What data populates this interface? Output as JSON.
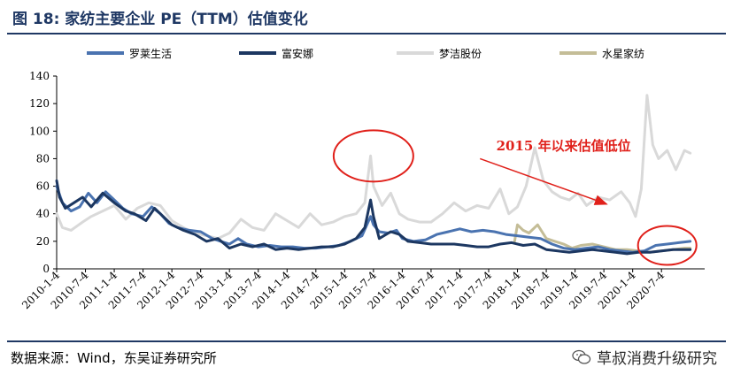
{
  "figure": {
    "title": "图 18:  家纺主要企业 PE（TTM）估值变化",
    "source": "数据来源：Wind，东吴证券研究所",
    "watermark": "草叔消费升级研究",
    "watermark_icon": "wechat-icon"
  },
  "colors": {
    "luolai": "#4a73b0",
    "fuanna": "#1c3761",
    "mengjie": "#d9d9d9",
    "shuixing": "#c4bd97",
    "annotation": "#e0201a",
    "rule": "#1f3864"
  },
  "chart_data": {
    "type": "line",
    "title": "家纺主要企业 PE（TTM）估值变化",
    "xlabel": "",
    "ylabel": "",
    "ylim": [
      0,
      140
    ],
    "yticks": [
      0,
      20,
      40,
      60,
      80,
      100,
      120,
      140
    ],
    "xlim": [
      2010.0,
      2021.25
    ],
    "xticks": [
      {
        "label": "2010-1-4",
        "t": 2010.0
      },
      {
        "label": "2010-7-4",
        "t": 2010.5
      },
      {
        "label": "2011-1-4",
        "t": 2011.0
      },
      {
        "label": "2011-7-4",
        "t": 2011.5
      },
      {
        "label": "2012-1-4",
        "t": 2012.0
      },
      {
        "label": "2012-7-4",
        "t": 2012.5
      },
      {
        "label": "2013-1-4",
        "t": 2013.0
      },
      {
        "label": "2013-7-4",
        "t": 2013.5
      },
      {
        "label": "2014-1-4",
        "t": 2014.0
      },
      {
        "label": "2014-7-4",
        "t": 2014.5
      },
      {
        "label": "2015-1-4",
        "t": 2015.0
      },
      {
        "label": "2015-7-4",
        "t": 2015.5
      },
      {
        "label": "2016-1-4",
        "t": 2016.0
      },
      {
        "label": "2016-7-4",
        "t": 2016.5
      },
      {
        "label": "2017-1-4",
        "t": 2017.0
      },
      {
        "label": "2017-7-4",
        "t": 2017.5
      },
      {
        "label": "2018-1-4",
        "t": 2018.0
      },
      {
        "label": "2018-7-4",
        "t": 2018.5
      },
      {
        "label": "2019-1-4",
        "t": 2019.0
      },
      {
        "label": "2019-7-4",
        "t": 2019.5
      },
      {
        "label": "2020-1-4",
        "t": 2020.0
      },
      {
        "label": "2020-7-4",
        "t": 2020.5
      }
    ],
    "series": [
      {
        "name": "罗莱生活",
        "color_key": "luolai",
        "points": [
          [
            2010.0,
            60
          ],
          [
            2010.1,
            48
          ],
          [
            2010.25,
            42
          ],
          [
            2010.4,
            45
          ],
          [
            2010.55,
            55
          ],
          [
            2010.7,
            48
          ],
          [
            2010.85,
            56
          ],
          [
            2011.0,
            50
          ],
          [
            2011.15,
            44
          ],
          [
            2011.3,
            40
          ],
          [
            2011.5,
            38
          ],
          [
            2011.65,
            45
          ],
          [
            2011.8,
            40
          ],
          [
            2011.95,
            33
          ],
          [
            2012.1,
            30
          ],
          [
            2012.3,
            28
          ],
          [
            2012.5,
            27
          ],
          [
            2012.7,
            22
          ],
          [
            2012.85,
            20
          ],
          [
            2013.0,
            18
          ],
          [
            2013.15,
            22
          ],
          [
            2013.3,
            18
          ],
          [
            2013.5,
            16
          ],
          [
            2013.7,
            17
          ],
          [
            2013.9,
            16
          ],
          [
            2014.1,
            16
          ],
          [
            2014.3,
            15
          ],
          [
            2014.5,
            15
          ],
          [
            2014.7,
            16
          ],
          [
            2014.9,
            17
          ],
          [
            2015.1,
            20
          ],
          [
            2015.3,
            24
          ],
          [
            2015.45,
            38
          ],
          [
            2015.5,
            32
          ],
          [
            2015.6,
            27
          ],
          [
            2015.75,
            26
          ],
          [
            2015.9,
            28
          ],
          [
            2016.0,
            22
          ],
          [
            2016.2,
            20
          ],
          [
            2016.4,
            21
          ],
          [
            2016.6,
            25
          ],
          [
            2016.8,
            27
          ],
          [
            2017.0,
            29
          ],
          [
            2017.2,
            27
          ],
          [
            2017.4,
            28
          ],
          [
            2017.6,
            27
          ],
          [
            2017.8,
            25
          ],
          [
            2018.0,
            24
          ],
          [
            2018.2,
            23
          ],
          [
            2018.4,
            22
          ],
          [
            2018.6,
            18
          ],
          [
            2018.8,
            15
          ],
          [
            2019.0,
            14
          ],
          [
            2019.2,
            15
          ],
          [
            2019.4,
            16
          ],
          [
            2019.6,
            14
          ],
          [
            2019.8,
            13
          ],
          [
            2020.0,
            12
          ],
          [
            2020.2,
            13
          ],
          [
            2020.4,
            17
          ],
          [
            2020.6,
            18
          ],
          [
            2020.8,
            19
          ],
          [
            2021.0,
            20
          ]
        ]
      },
      {
        "name": "富安娜",
        "color_key": "fuanna",
        "points": [
          [
            2010.0,
            64
          ],
          [
            2010.05,
            52
          ],
          [
            2010.15,
            44
          ],
          [
            2010.3,
            48
          ],
          [
            2010.45,
            52
          ],
          [
            2010.6,
            45
          ],
          [
            2010.8,
            55
          ],
          [
            2011.0,
            48
          ],
          [
            2011.2,
            42
          ],
          [
            2011.35,
            40
          ],
          [
            2011.55,
            35
          ],
          [
            2011.7,
            44
          ],
          [
            2011.85,
            38
          ],
          [
            2012.0,
            32
          ],
          [
            2012.2,
            28
          ],
          [
            2012.4,
            25
          ],
          [
            2012.6,
            20
          ],
          [
            2012.8,
            22
          ],
          [
            2013.0,
            15
          ],
          [
            2013.2,
            18
          ],
          [
            2013.4,
            16
          ],
          [
            2013.6,
            18
          ],
          [
            2013.8,
            14
          ],
          [
            2014.0,
            15
          ],
          [
            2014.2,
            14
          ],
          [
            2014.4,
            15
          ],
          [
            2014.6,
            16
          ],
          [
            2014.8,
            16
          ],
          [
            2015.0,
            18
          ],
          [
            2015.2,
            22
          ],
          [
            2015.35,
            30
          ],
          [
            2015.45,
            50
          ],
          [
            2015.5,
            38
          ],
          [
            2015.6,
            22
          ],
          [
            2015.8,
            27
          ],
          [
            2015.95,
            25
          ],
          [
            2016.1,
            20
          ],
          [
            2016.3,
            19
          ],
          [
            2016.5,
            18
          ],
          [
            2016.7,
            18
          ],
          [
            2016.9,
            18
          ],
          [
            2017.1,
            17
          ],
          [
            2017.3,
            16
          ],
          [
            2017.5,
            16
          ],
          [
            2017.7,
            18
          ],
          [
            2017.9,
            19
          ],
          [
            2018.1,
            17
          ],
          [
            2018.3,
            18
          ],
          [
            2018.5,
            14
          ],
          [
            2018.7,
            13
          ],
          [
            2018.9,
            12
          ],
          [
            2019.1,
            13
          ],
          [
            2019.3,
            14
          ],
          [
            2019.5,
            13
          ],
          [
            2019.7,
            12
          ],
          [
            2019.9,
            11
          ],
          [
            2020.1,
            12
          ],
          [
            2020.3,
            12
          ],
          [
            2020.5,
            13
          ],
          [
            2020.7,
            14
          ],
          [
            2020.9,
            14
          ],
          [
            2021.0,
            14
          ]
        ]
      },
      {
        "name": "梦洁股份",
        "color_key": "mengjie",
        "points": [
          [
            2010.0,
            40
          ],
          [
            2010.1,
            30
          ],
          [
            2010.25,
            28
          ],
          [
            2010.45,
            34
          ],
          [
            2010.6,
            38
          ],
          [
            2010.8,
            42
          ],
          [
            2011.0,
            46
          ],
          [
            2011.2,
            36
          ],
          [
            2011.4,
            44
          ],
          [
            2011.6,
            48
          ],
          [
            2011.8,
            46
          ],
          [
            2012.0,
            35
          ],
          [
            2012.2,
            30
          ],
          [
            2012.4,
            26
          ],
          [
            2012.6,
            24
          ],
          [
            2012.8,
            22
          ],
          [
            2013.0,
            26
          ],
          [
            2013.2,
            36
          ],
          [
            2013.4,
            30
          ],
          [
            2013.6,
            28
          ],
          [
            2013.8,
            40
          ],
          [
            2014.0,
            35
          ],
          [
            2014.2,
            30
          ],
          [
            2014.4,
            40
          ],
          [
            2014.6,
            32
          ],
          [
            2014.8,
            34
          ],
          [
            2015.0,
            38
          ],
          [
            2015.2,
            40
          ],
          [
            2015.35,
            48
          ],
          [
            2015.45,
            82
          ],
          [
            2015.5,
            60
          ],
          [
            2015.65,
            46
          ],
          [
            2015.8,
            55
          ],
          [
            2015.95,
            40
          ],
          [
            2016.1,
            36
          ],
          [
            2016.3,
            34
          ],
          [
            2016.5,
            34
          ],
          [
            2016.7,
            40
          ],
          [
            2016.9,
            48
          ],
          [
            2017.1,
            42
          ],
          [
            2017.3,
            46
          ],
          [
            2017.5,
            44
          ],
          [
            2017.7,
            58
          ],
          [
            2017.85,
            40
          ],
          [
            2018.0,
            45
          ],
          [
            2018.15,
            60
          ],
          [
            2018.3,
            88
          ],
          [
            2018.45,
            64
          ],
          [
            2018.6,
            56
          ],
          [
            2018.75,
            52
          ],
          [
            2018.9,
            50
          ],
          [
            2019.05,
            55
          ],
          [
            2019.2,
            46
          ],
          [
            2019.4,
            52
          ],
          [
            2019.6,
            50
          ],
          [
            2019.8,
            56
          ],
          [
            2019.95,
            48
          ],
          [
            2020.05,
            38
          ],
          [
            2020.15,
            58
          ],
          [
            2020.25,
            126
          ],
          [
            2020.35,
            90
          ],
          [
            2020.45,
            80
          ],
          [
            2020.6,
            86
          ],
          [
            2020.75,
            72
          ],
          [
            2020.9,
            86
          ],
          [
            2021.0,
            84
          ]
        ]
      },
      {
        "name": "水星家纺",
        "color_key": "shuixing",
        "points": [
          [
            2017.95,
            20
          ],
          [
            2018.0,
            32
          ],
          [
            2018.1,
            28
          ],
          [
            2018.2,
            26
          ],
          [
            2018.35,
            32
          ],
          [
            2018.5,
            22
          ],
          [
            2018.65,
            20
          ],
          [
            2018.8,
            18
          ],
          [
            2018.95,
            15
          ],
          [
            2019.1,
            17
          ],
          [
            2019.3,
            18
          ],
          [
            2019.5,
            16
          ],
          [
            2019.7,
            14
          ],
          [
            2019.9,
            14
          ],
          [
            2020.1,
            13
          ],
          [
            2020.3,
            12
          ],
          [
            2020.5,
            13
          ],
          [
            2020.7,
            14
          ],
          [
            2020.9,
            15
          ],
          [
            2021.0,
            15
          ]
        ]
      }
    ],
    "annotations": [
      {
        "type": "ellipse",
        "label": "circle-2015-peak",
        "t": 2015.5,
        "y": 82
      },
      {
        "type": "ellipse",
        "label": "circle-2020-low",
        "t": 2020.6,
        "y": 17
      },
      {
        "type": "text",
        "text": "2015 年以来估值低位",
        "t": 2018.8,
        "y": 86
      },
      {
        "type": "arrow",
        "from_t": 2017.35,
        "from_y": 80,
        "to_t": 2019.55,
        "to_y": 47
      }
    ]
  }
}
